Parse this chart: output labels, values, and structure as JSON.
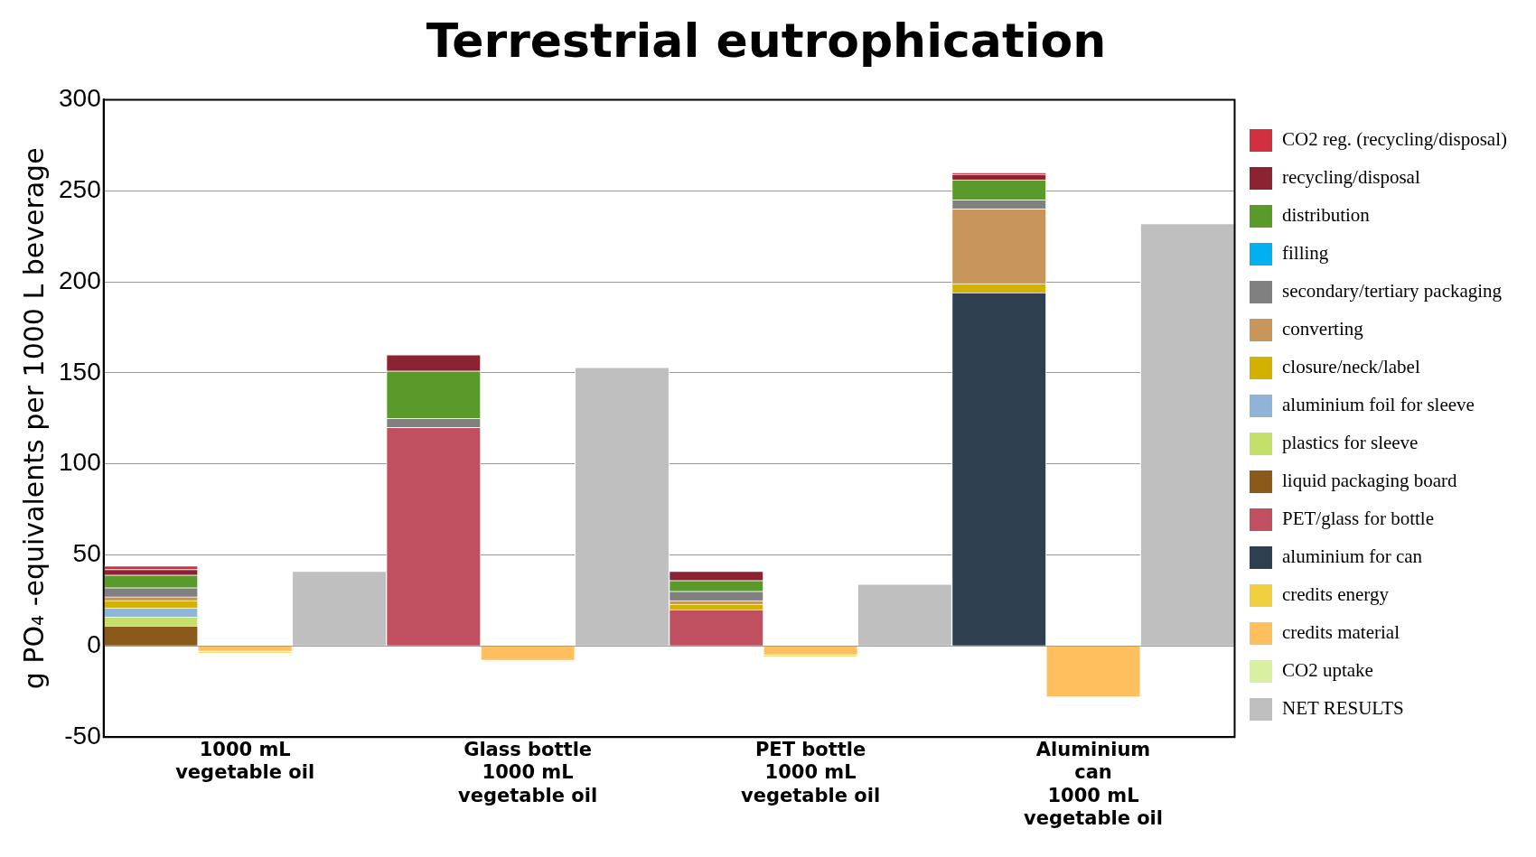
{
  "chart_data": {
    "type": "bar",
    "title": "Terrestrial eutrophication",
    "ylabel": "g PO₄ -equivalents per 1000 L beverage",
    "categories": [
      null,
      "1000 mL\nvegetable oil",
      null,
      null,
      "Glass bottle\n1000 mL\nvegetable oil",
      null,
      null,
      "PET bottle\n1000 mL\nvegetable oil",
      null,
      null,
      "Aluminium\ncan\n1000 mL\nvegetable oil",
      null
    ],
    "stacked": true,
    "ylim": [
      -50,
      300
    ],
    "yticks": [
      -50,
      0,
      50,
      100,
      150,
      200,
      250,
      300
    ],
    "grid": "y",
    "legend": "right",
    "series": [
      {
        "name": "NET RESULTS",
        "color": "#bfbfbf",
        "values": [
          null,
          null,
          41,
          null,
          null,
          153,
          null,
          null,
          34,
          null,
          null,
          232
        ]
      },
      {
        "name": "CO2 uptake",
        "color": "#d8f0a0",
        "values": [
          null,
          null,
          null,
          null,
          null,
          null,
          null,
          null,
          null,
          null,
          null,
          null
        ]
      },
      {
        "name": "credits material",
        "color": "#ffbf5f",
        "values": [
          null,
          -3,
          null,
          null,
          -8,
          null,
          null,
          -5,
          null,
          null,
          -28,
          null
        ]
      },
      {
        "name": "credits energy",
        "color": "#f0d040",
        "values": [
          null,
          -1,
          null,
          null,
          null,
          null,
          null,
          -1,
          null,
          null,
          null,
          null
        ]
      },
      {
        "name": "aluminium for can",
        "color": "#2e3f50",
        "values": [
          null,
          null,
          null,
          null,
          null,
          null,
          null,
          null,
          null,
          194,
          null,
          null
        ]
      },
      {
        "name": "PET/glass for bottle",
        "color": "#c0505f",
        "values": [
          null,
          null,
          null,
          120,
          null,
          null,
          20,
          null,
          null,
          null,
          null,
          null
        ]
      },
      {
        "name": "liquid packaging board",
        "color": "#8b5a1a",
        "values": [
          11,
          null,
          null,
          null,
          null,
          null,
          null,
          null,
          null,
          null,
          null,
          null
        ]
      },
      {
        "name": "plastics for sleeve",
        "color": "#c4e06a",
        "values": [
          5,
          null,
          null,
          null,
          null,
          null,
          null,
          null,
          null,
          null,
          null,
          null
        ]
      },
      {
        "name": "aluminium foil for sleeve",
        "color": "#8fb4d8",
        "values": [
          5,
          null,
          null,
          null,
          null,
          null,
          null,
          null,
          null,
          null,
          null,
          null
        ]
      },
      {
        "name": "closure/neck/label",
        "color": "#d4b000",
        "values": [
          4,
          null,
          null,
          null,
          null,
          null,
          3,
          null,
          null,
          5,
          null,
          null
        ]
      },
      {
        "name": "converting",
        "color": "#c8955a",
        "values": [
          2,
          null,
          null,
          null,
          null,
          null,
          2,
          null,
          null,
          41,
          null,
          null
        ]
      },
      {
        "name": "secondary/tertiary packaging",
        "color": "#808080",
        "values": [
          5,
          null,
          null,
          5,
          null,
          null,
          5,
          null,
          null,
          5,
          null,
          null
        ]
      },
      {
        "name": "filling",
        "color": "#00b0f0",
        "values": [
          null,
          null,
          null,
          null,
          null,
          null,
          null,
          null,
          null,
          null,
          null,
          null
        ]
      },
      {
        "name": "distribution",
        "color": "#5a9a2a",
        "values": [
          7,
          null,
          null,
          26,
          null,
          null,
          6,
          null,
          null,
          11,
          null,
          null
        ]
      },
      {
        "name": "recycling/disposal",
        "color": "#8b2332",
        "values": [
          3,
          null,
          null,
          9,
          null,
          null,
          5,
          null,
          null,
          3,
          null,
          null
        ]
      },
      {
        "name": "CO2 reg. (recycling/disposal)",
        "color": "#d03040",
        "values": [
          2,
          null,
          null,
          null,
          null,
          null,
          null,
          null,
          null,
          1,
          null,
          null
        ]
      }
    ]
  }
}
